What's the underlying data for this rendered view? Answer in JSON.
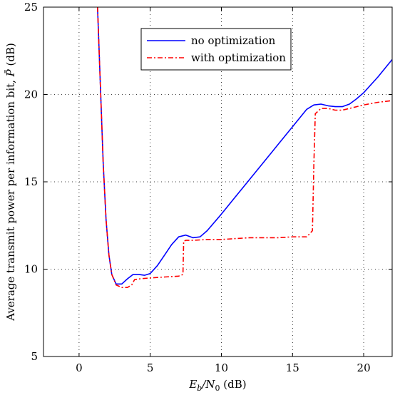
{
  "chart_data": {
    "type": "line",
    "xlabel": "E_b/N_0 (dB)",
    "ylabel": "Average transmit power per information bit, P̄ (dB)",
    "xlim": [
      -2.5,
      22
    ],
    "ylim": [
      5,
      25
    ],
    "xticks": [
      0,
      5,
      10,
      15,
      20
    ],
    "yticks": [
      5,
      10,
      15,
      20,
      25
    ],
    "grid": true,
    "legend_position": "top-center",
    "series": [
      {
        "name": "no optimization",
        "color": "#0000ff",
        "line_style": "solid",
        "x": [
          1.3,
          1.5,
          1.7,
          1.9,
          2.1,
          2.3,
          2.6,
          3.0,
          3.4,
          3.8,
          4.2,
          4.6,
          5.0,
          5.5,
          6.0,
          6.5,
          7.0,
          7.5,
          8.0,
          8.5,
          9.0,
          10.0,
          11.0,
          12.0,
          13.0,
          14.0,
          15.0,
          16.0,
          16.5,
          17.0,
          17.5,
          18.0,
          18.5,
          19.0,
          19.5,
          20.0,
          21.0,
          22.0
        ],
        "y": [
          25.0,
          20.5,
          16.0,
          12.8,
          10.8,
          9.7,
          9.15,
          9.15,
          9.45,
          9.7,
          9.7,
          9.65,
          9.75,
          10.2,
          10.8,
          11.4,
          11.85,
          11.95,
          11.8,
          11.85,
          12.2,
          13.15,
          14.15,
          15.15,
          16.15,
          17.15,
          18.15,
          19.15,
          19.4,
          19.45,
          19.35,
          19.3,
          19.3,
          19.45,
          19.75,
          20.1,
          21.0,
          22.0
        ]
      },
      {
        "name": "with optimization",
        "color": "#ff0000",
        "line_style": "dashdot",
        "x": [
          1.3,
          1.5,
          1.7,
          1.9,
          2.1,
          2.3,
          2.6,
          3.0,
          3.4,
          3.7,
          3.9,
          4.3,
          5.0,
          6.0,
          7.0,
          7.3,
          7.35,
          7.5,
          8.0,
          9.0,
          10.0,
          11.0,
          12.0,
          13.0,
          14.0,
          15.0,
          16.0,
          16.4,
          16.5,
          16.6,
          17.0,
          17.5,
          18.0,
          18.5,
          19.0,
          20.0,
          21.0,
          22.0
        ],
        "y": [
          25.0,
          20.5,
          16.0,
          12.8,
          10.8,
          9.7,
          9.1,
          8.95,
          8.95,
          9.1,
          9.4,
          9.45,
          9.5,
          9.55,
          9.6,
          9.7,
          11.6,
          11.65,
          11.65,
          11.7,
          11.7,
          11.75,
          11.8,
          11.8,
          11.8,
          11.85,
          11.85,
          12.2,
          16.0,
          18.9,
          19.2,
          19.2,
          19.1,
          19.1,
          19.2,
          19.4,
          19.55,
          19.65
        ]
      }
    ]
  },
  "legend": {
    "entries": [
      "no optimization",
      "with optimization"
    ]
  },
  "axes": {
    "xlabel_main": "E",
    "xlabel_sub1": "b",
    "xlabel_slash": "/N",
    "xlabel_sub2": "0",
    "xlabel_unit": " (dB)",
    "ylabel_text": "Average transmit power per information bit, ",
    "ylabel_symbol": "P̄",
    "ylabel_unit": " (dB)"
  }
}
